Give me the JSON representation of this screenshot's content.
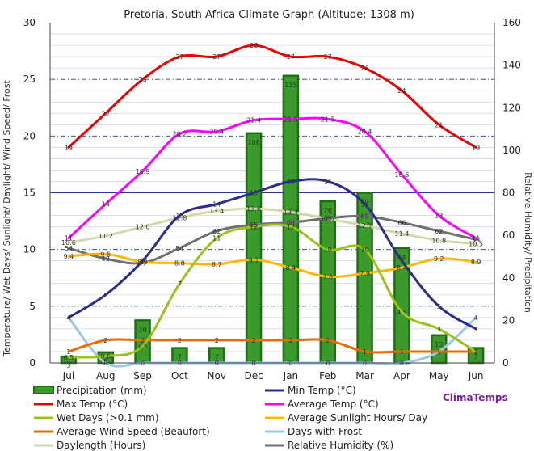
{
  "chart_data": {
    "type": "bar",
    "title": "Pretoria, South Africa Climate Graph (Altitude: 1308 m)",
    "ylabel_left": "Temperature/ Wet Days/ Sunlight/ Daylight/ Wind Speed/ Frost",
    "ylabel_right": "Relative Humidity/ Precipitation",
    "ylim_left": [
      0,
      30
    ],
    "ylim_right": [
      0,
      160
    ],
    "yticks_left": [
      "0",
      "5",
      "10",
      "15",
      "20",
      "25",
      "30"
    ],
    "yticks_right": [
      "0",
      "20",
      "40",
      "60",
      "80",
      "100",
      "120",
      "140",
      "160"
    ],
    "grid": true,
    "categories": [
      "Jul",
      "Aug",
      "Sep",
      "Oct",
      "Nov",
      "Dec",
      "Jan",
      "Feb",
      "Mar",
      "Apr",
      "May",
      "Jun"
    ],
    "bars": {
      "name": "Precipitation (mm)",
      "axis": "right",
      "color": "#3a9a2a",
      "values": [
        3,
        5,
        20,
        7,
        7,
        108,
        135,
        76,
        80,
        54,
        13,
        7
      ]
    },
    "series": [
      {
        "name": "Max Temp (°C)",
        "axis": "left",
        "color": "#ee0000",
        "values": [
          19,
          22,
          25,
          27,
          27,
          28,
          27,
          27,
          26,
          24,
          21,
          19
        ],
        "labels": [
          "19",
          "22",
          "25",
          "27",
          "27",
          "28",
          "27",
          "27",
          "26",
          "24",
          "21",
          "19"
        ]
      },
      {
        "name": "Min Temp (°C)",
        "axis": "left",
        "color": "#2b2b90",
        "values": [
          4,
          6,
          9,
          13,
          14,
          15,
          16,
          16,
          14,
          9,
          5,
          3
        ],
        "labels": [
          "4",
          "6",
          "9",
          "13",
          "14",
          "15",
          "16",
          "16",
          "14",
          "9",
          "5",
          "3"
        ]
      },
      {
        "name": "Average Temp (°C)",
        "axis": "left",
        "color": "#ff00ff",
        "values": [
          11,
          14,
          16.9,
          20.2,
          20.4,
          21.4,
          21.5,
          21.5,
          20.4,
          16.6,
          13,
          11
        ],
        "labels": [
          "11",
          "14",
          "16.9",
          "20.2",
          "20.4",
          "21.4",
          "21.5",
          "21.5",
          "20.4",
          "16.6",
          "13",
          "11"
        ]
      },
      {
        "name": "Wet Days (>0.1 mm)",
        "axis": "left",
        "color": "#99c21a",
        "values": [
          0.5,
          0.6,
          1.5,
          7,
          11,
          12,
          12,
          10,
          10,
          4.5,
          3,
          1
        ],
        "labels": [
          "0.5",
          "0.6",
          "1.5",
          "7",
          "11",
          "12",
          "12",
          "10",
          "10",
          "4.5",
          "3",
          "1"
        ]
      },
      {
        "name": "Average Sunlight Hours/ Day",
        "axis": "left",
        "color": "#ffb800",
        "values": [
          9.4,
          9.6,
          8.9,
          8.8,
          8.7,
          9.1,
          8.4,
          7.6,
          7.9,
          8.4,
          9.2,
          8.9
        ],
        "labels": [
          "9.4",
          "9.6",
          "8.9",
          "8.8",
          "8.7",
          "9.1",
          "8.4",
          "7.6",
          "7.9",
          "8.4",
          "9.2",
          "8.9"
        ]
      },
      {
        "name": "Average Wind Speed (Beaufort)",
        "axis": "left",
        "color": "#ee6a00",
        "values": [
          1,
          2,
          2,
          2,
          2,
          2,
          2,
          2,
          1,
          1,
          1,
          1
        ],
        "labels": [
          "1",
          "2",
          "2",
          "2",
          "2",
          "2",
          "2",
          "2",
          "1",
          "1",
          "1",
          "1"
        ]
      },
      {
        "name": "Days with Frost",
        "axis": "left",
        "color": "#9ac8ea",
        "values": [
          4,
          0,
          0,
          0,
          0,
          0,
          0,
          0,
          0,
          0,
          1,
          4
        ],
        "labels": [
          "4",
          "0",
          "0",
          "0",
          "0",
          "0",
          "0",
          "0",
          "0",
          "0",
          "1",
          "4"
        ]
      },
      {
        "name": "Daylength (Hours)",
        "axis": "left",
        "color": "#d2d9a6",
        "values": [
          10.6,
          11.2,
          12,
          12.8,
          13.4,
          13.6,
          13.3,
          12.7,
          12.1,
          11.4,
          10.8,
          10.5
        ],
        "labels": [
          "10.6",
          "11.2",
          "12.0",
          "12.8",
          "13.4",
          "13.6",
          "13.3",
          "12.7",
          "12.1",
          "11.4",
          "10.8",
          "10.5"
        ]
      },
      {
        "name": "Relative Humidity (%)",
        "axis": "right",
        "color": "#707070",
        "values": [
          54,
          49,
          47,
          54,
          62,
          65,
          66,
          68,
          69,
          66,
          62,
          58
        ],
        "labels": [
          "54",
          "49",
          "47",
          "54",
          "62",
          "65",
          "66",
          "68",
          "69",
          "66",
          "62",
          "58"
        ]
      }
    ],
    "legend": {
      "position": "bottom",
      "entries": [
        {
          "name": "Precipitation (mm)",
          "color": "#3a9a2a",
          "kind": "bar"
        },
        {
          "name": "Min Temp (°C)",
          "color": "#2b2b90",
          "kind": "line"
        },
        {
          "name": "Max Temp (°C)",
          "color": "#ee0000",
          "kind": "line"
        },
        {
          "name": "Average Temp (°C)",
          "color": "#ff00ff",
          "kind": "line"
        },
        {
          "name": "Wet Days (>0.1 mm)",
          "color": "#99c21a",
          "kind": "line"
        },
        {
          "name": "Average Sunlight Hours/ Day",
          "color": "#ffb800",
          "kind": "line"
        },
        {
          "name": "Average Wind Speed (Beaufort)",
          "color": "#ee6a00",
          "kind": "line"
        },
        {
          "name": "Days with Frost",
          "color": "#9ac8ea",
          "kind": "line"
        },
        {
          "name": "Daylength (Hours)",
          "color": "#d2d9a6",
          "kind": "line"
        },
        {
          "name": "Relative Humidity (%)",
          "color": "#707070",
          "kind": "line"
        }
      ]
    },
    "brand": "ClimaTemps"
  }
}
